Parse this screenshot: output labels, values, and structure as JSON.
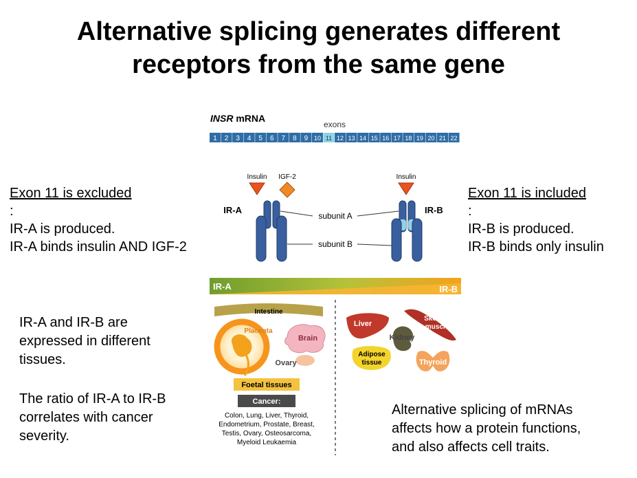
{
  "title": {
    "line1": "Alternative splicing generates different",
    "line2": "receptors from the same gene"
  },
  "figure": {
    "mrna_label_gene": "INSR",
    "mrna_label_rest": " mRNA",
    "exons_label": "exons",
    "exons": [
      "1",
      "2",
      "3",
      "4",
      "5",
      "6",
      "7",
      "8",
      "9",
      "10",
      "11",
      "12",
      "13",
      "14",
      "15",
      "16",
      "17",
      "18",
      "19",
      "20",
      "21",
      "22"
    ],
    "ligand_insulin": "Insulin",
    "ligand_igf2": "IGF-2",
    "receptor_a": "IR-A",
    "receptor_b": "IR-B",
    "subunit_a": "subunit A",
    "subunit_b": "subunit B",
    "gradient_left": "IR-A",
    "gradient_right": "IR-B",
    "tissues": {
      "intestine": "Intestine",
      "placenta": "Placenta",
      "brain": "Brain",
      "ovary": "Ovary",
      "foetal": "Foetal tissues",
      "cancer_header": "Cancer:",
      "cancer_list": [
        "Colon, Lung, Liver, Thyroid,",
        "Endometrium, Prostate, Breast,",
        "Testis, Ovary, Osteosarcoma,",
        "Myeloid Leukaemia"
      ],
      "liver": "Liver",
      "kidney": "Kidney",
      "skeletal_1": "Skeletal",
      "skeletal_2": "muscle",
      "adipose_1": "Adipose",
      "adipose_2": "tissue",
      "thyroid": "Thyroid"
    },
    "colors": {
      "exon_blue": "#2f6da6",
      "exon_11": "#8fd3e4",
      "receptor": "#3a5f9e",
      "ligand": "#e8531f",
      "gradient_green": "#7aa635",
      "gradient_orange": "#f4a21b"
    }
  },
  "left_box": {
    "heading": "Exon 11 is excluded",
    "heading_suffix": ":",
    "line1": "IR-A is produced.",
    "line2": "IR-A binds insulin AND IGF-2"
  },
  "right_box": {
    "heading": "Exon 11 is included",
    "heading_suffix": ":",
    "line1": "IR-B is produced.",
    "line2": "IR-B binds only insulin"
  },
  "tissue_text": {
    "line1": "IR-A and IR-B are",
    "line2": "expressed in different",
    "line3": "tissues."
  },
  "ratio_text": {
    "line1": "The ratio of IR-A to IR-B",
    "line2": "correlates with cancer",
    "line3": "severity."
  },
  "bottom_right_text": {
    "line1": "Alternative splicing of mRNAs",
    "line2": "affects how a protein functions,",
    "line3": "and also affects cell traits."
  }
}
